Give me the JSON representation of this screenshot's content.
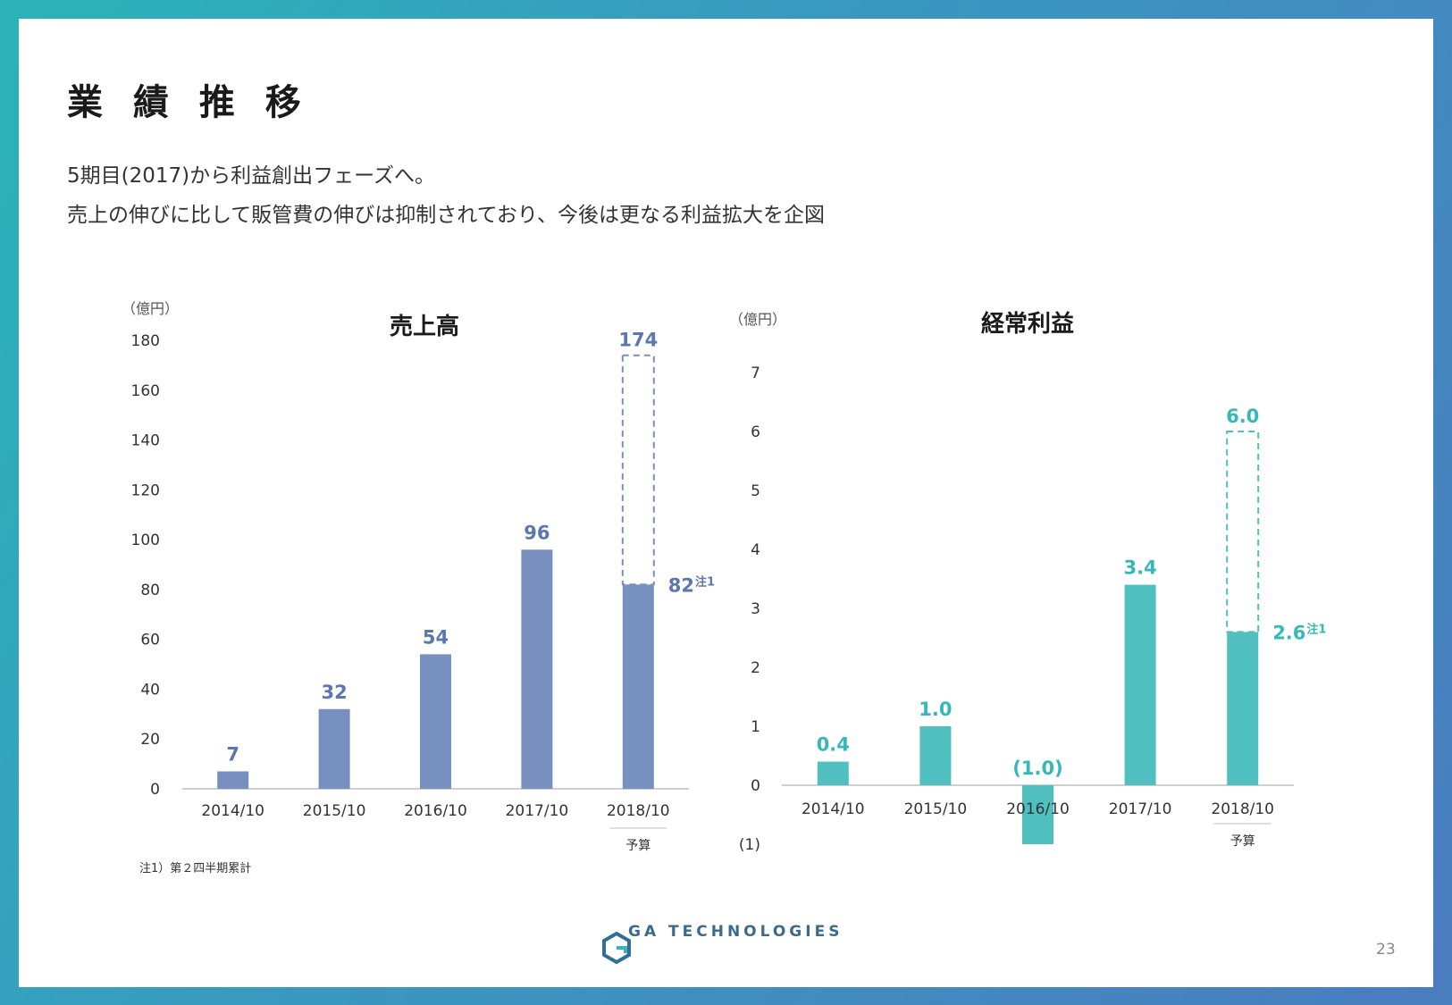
{
  "slide": {
    "title": "業 績 推 移",
    "subtitle_1": "5期目(2017)から利益創出フェーズへ。",
    "subtitle_2": "売上の伸びに比して販管費の伸びは抑制されており、今後は更なる利益拡大を企図",
    "footnote": "注1）第２四半期累計",
    "logo_text": "GA TECHNOLOGIES",
    "page_number": "23"
  },
  "colors": {
    "sales_bar": "#7890c0",
    "sales_label": "#5b77b1",
    "profit_bar": "#4fbfc0",
    "profit_label": "#34b8ba"
  },
  "chart_data": [
    {
      "type": "bar",
      "title": "売上高",
      "unit_label": "（億円）",
      "categories": [
        "2014/10",
        "2015/10",
        "2016/10",
        "2017/10",
        "2018/10"
      ],
      "values": [
        7,
        32,
        54,
        96,
        82
      ],
      "value_labels": [
        "7",
        "32",
        "54",
        "96",
        "82"
      ],
      "budget": {
        "category": "2018/10",
        "value": 174,
        "label": "174",
        "note": "予算"
      },
      "note_marker": "注1",
      "yticks": [
        "0",
        "20",
        "40",
        "60",
        "80",
        "100",
        "120",
        "140",
        "160",
        "180"
      ],
      "ylim": [
        0,
        180
      ],
      "grid": false
    },
    {
      "type": "bar",
      "title": "経常利益",
      "unit_label": "（億円）",
      "categories": [
        "2014/10",
        "2015/10",
        "2016/10",
        "2017/10",
        "2018/10"
      ],
      "values": [
        0.4,
        1.0,
        -1.0,
        3.4,
        2.6
      ],
      "value_labels": [
        "0.4",
        "1.0",
        "(1.0)",
        "3.4",
        "2.6"
      ],
      "budget": {
        "category": "2018/10",
        "value": 6.0,
        "label": "6.0",
        "note": "予算"
      },
      "note_marker": "注1",
      "yticks": [
        "(1)",
        "0",
        "1",
        "2",
        "3",
        "4",
        "5",
        "6",
        "7"
      ],
      "ylim": [
        -1,
        7
      ],
      "grid": false
    }
  ]
}
